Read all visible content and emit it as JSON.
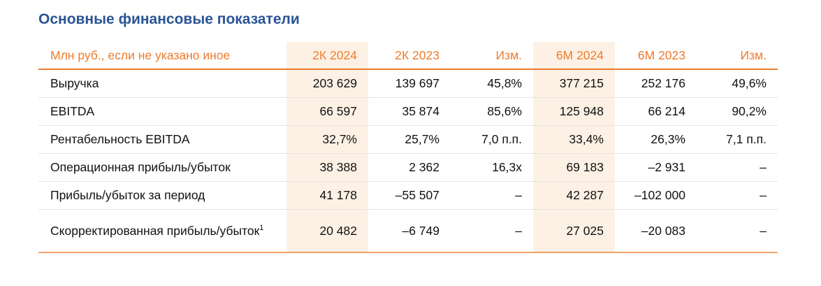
{
  "header": {
    "title": "Основные финансовые показатели"
  },
  "table": {
    "columns": [
      "Млн руб., если не указано иное",
      "2К 2024",
      "2К 2023",
      "Изм.",
      "6М 2024",
      "6М 2023",
      "Изм."
    ],
    "rows": [
      [
        "Выручка",
        "203 629",
        "139 697",
        "45,8%",
        "377 215",
        "252 176",
        "49,6%"
      ],
      [
        "EBITDA",
        "66 597",
        "35 874",
        "85,6%",
        "125 948",
        "66 214",
        "90,2%"
      ],
      [
        "Рентабельность EBITDA",
        "32,7%",
        "25,7%",
        "7,0 п.п.",
        "33,4%",
        "26,3%",
        "7,1 п.п."
      ],
      [
        "Операционная прибыль/убыток",
        "38 388",
        "2 362",
        "16,3x",
        "69 183",
        "–2 931",
        "–"
      ],
      [
        "Прибыль/убыток за период",
        "41 178",
        "–55 507",
        "–",
        "42 287",
        "–102 000",
        "–"
      ],
      [
        "Скорректированная прибыль/убыток",
        "20 482",
        "–6 749",
        "–",
        "27 025",
        "–20 083",
        "–"
      ]
    ],
    "footnotes": {
      "5": "1"
    }
  }
}
